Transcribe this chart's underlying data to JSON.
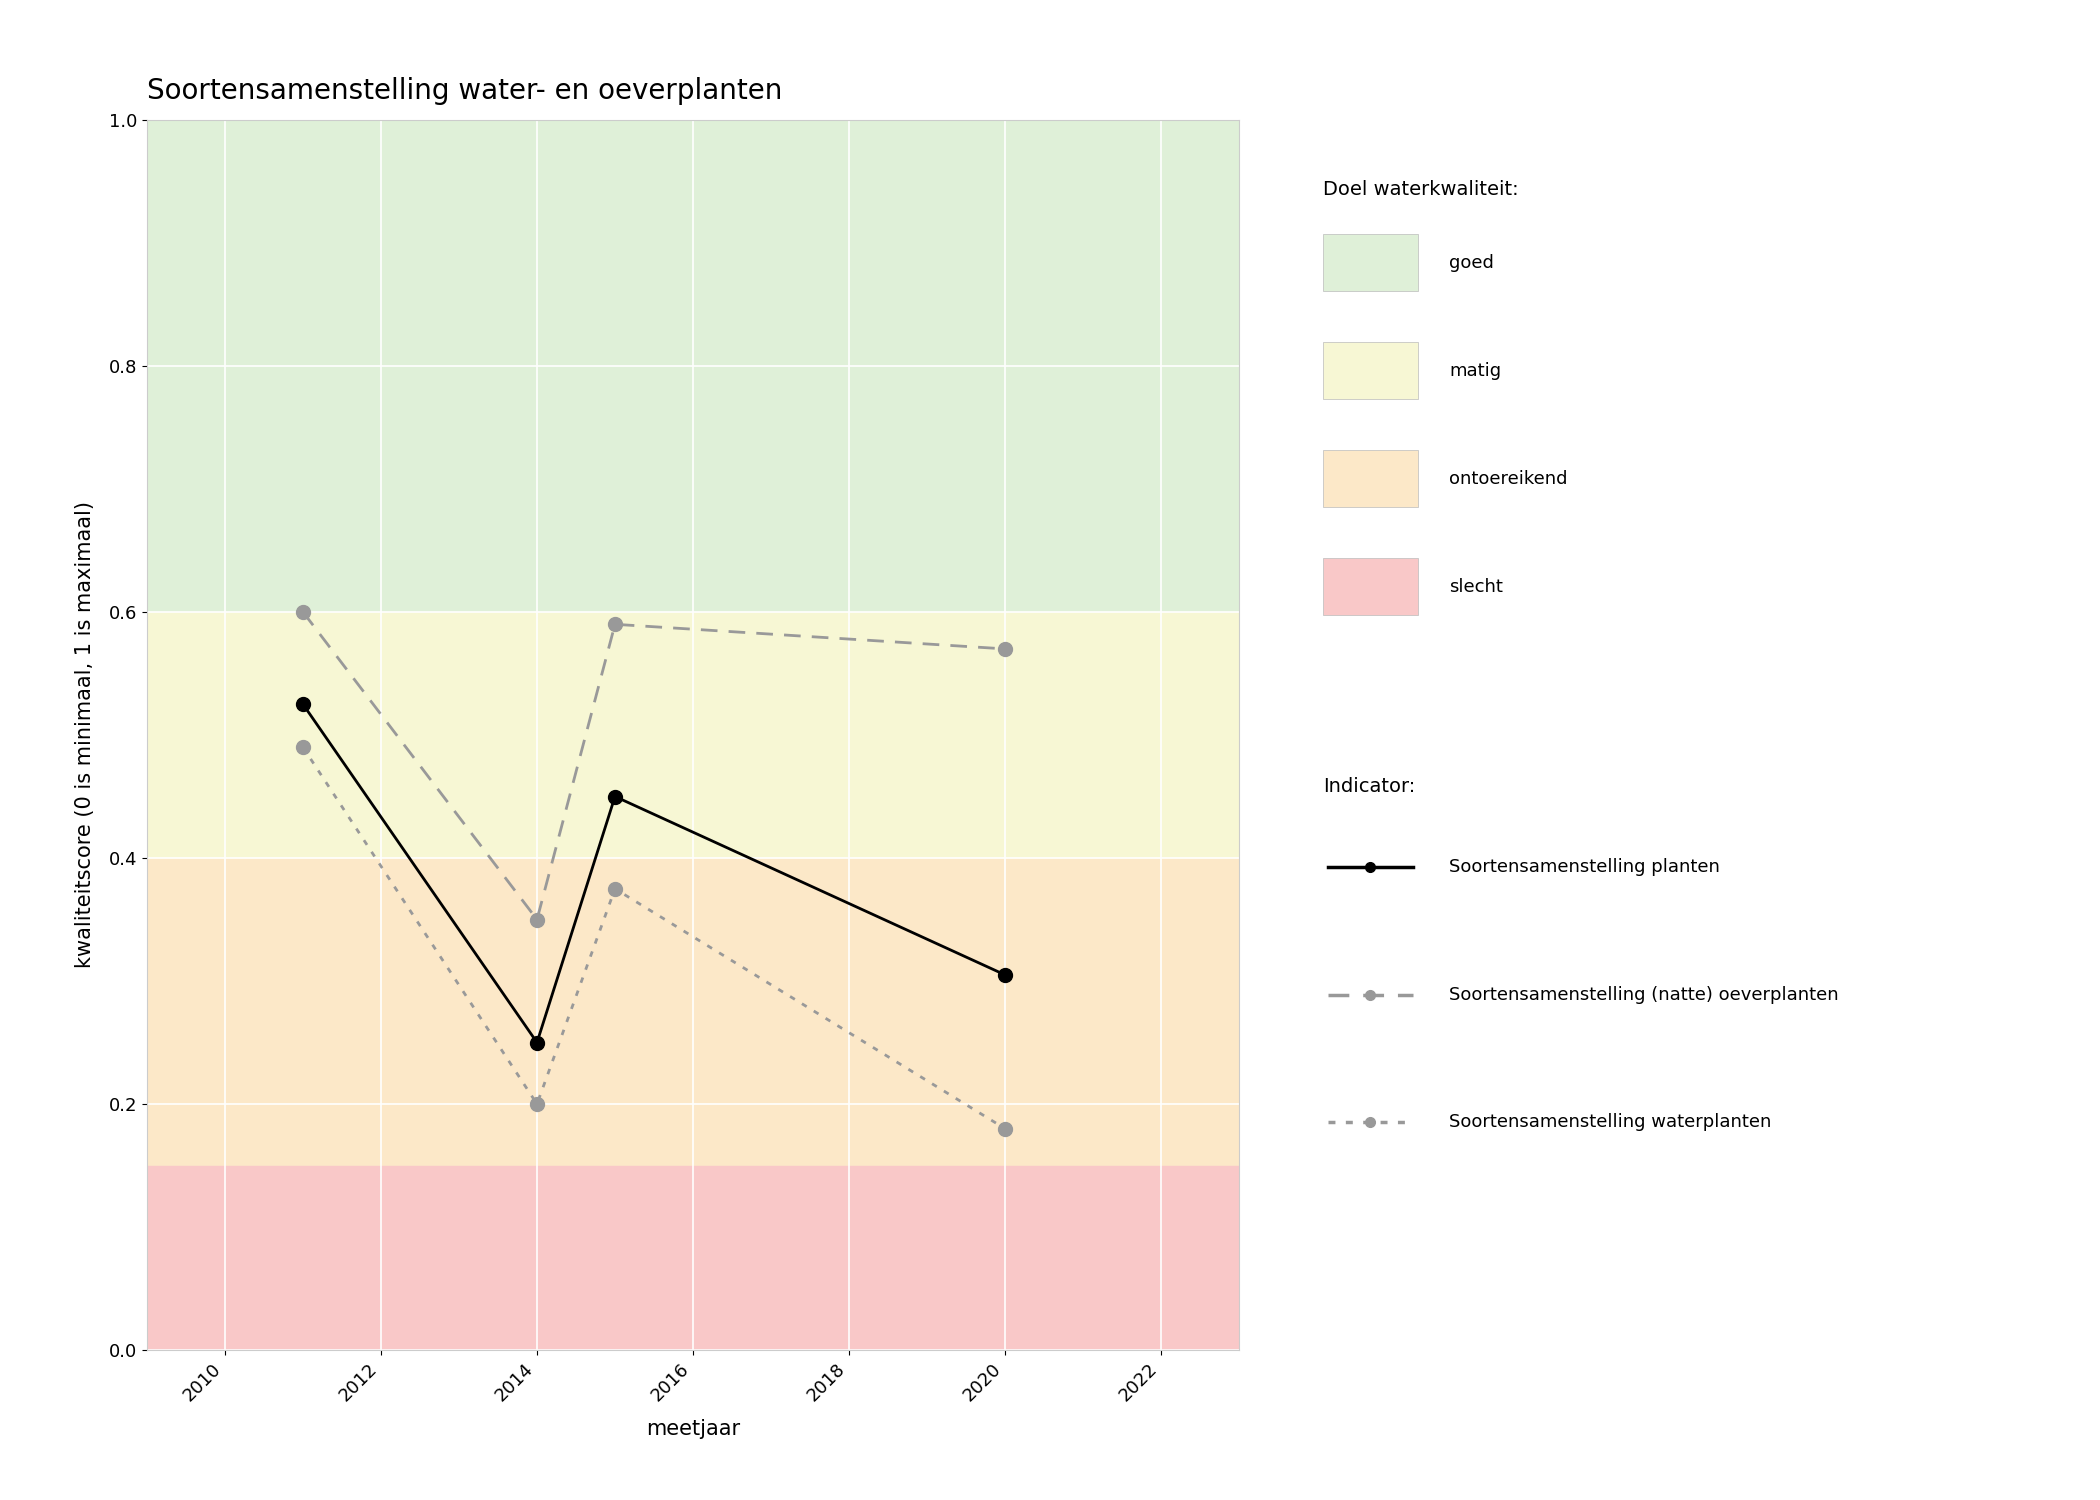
{
  "title": "Soortensamenstelling water- en oeverplanten",
  "xlabel": "meetjaar",
  "ylabel": "kwaliteitscore (0 is minimaal, 1 is maximaal)",
  "xlim": [
    2009.0,
    2023.0
  ],
  "ylim": [
    0.0,
    1.0
  ],
  "xticks": [
    2010,
    2012,
    2014,
    2016,
    2018,
    2020,
    2022
  ],
  "yticks": [
    0.0,
    0.2,
    0.4,
    0.6,
    0.8,
    1.0
  ],
  "bg_good_min": 0.6,
  "bg_good_max": 1.0,
  "bg_good_color": "#dff0d8",
  "bg_moderate_min": 0.4,
  "bg_moderate_max": 0.6,
  "bg_moderate_color": "#f7f7d4",
  "bg_poor_min": 0.15,
  "bg_poor_max": 0.4,
  "bg_poor_color": "#fce8c8",
  "bg_bad_min": 0.0,
  "bg_bad_max": 0.15,
  "bg_bad_color": "#f9c8c8",
  "line1_x": [
    2011,
    2014,
    2015,
    2020
  ],
  "line1_y": [
    0.525,
    0.25,
    0.45,
    0.305
  ],
  "line1_color": "#000000",
  "line1_style": "solid",
  "line1_label": "Soortensamenstelling planten",
  "line2_x": [
    2011,
    2014,
    2015,
    2020
  ],
  "line2_y": [
    0.6,
    0.35,
    0.59,
    0.57
  ],
  "line2_color": "#999999",
  "line2_style": "dashed",
  "line2_label": "Soortensamenstelling (natte) oeverplanten",
  "line3_x": [
    2011,
    2014,
    2015,
    2020
  ],
  "line3_y": [
    0.49,
    0.2,
    0.375,
    0.18
  ],
  "line3_color": "#999999",
  "line3_style": "dotted",
  "line3_label": "Soortensamenstelling waterplanten",
  "legend_quality_title": "Doel waterkwaliteit:",
  "legend_indicator_title": "Indicator:",
  "legend_quality_labels": [
    "goed",
    "matig",
    "ontoereikend",
    "slecht"
  ],
  "legend_quality_colors": [
    "#dff0d8",
    "#f7f7d4",
    "#fce8c8",
    "#f9c8c8"
  ],
  "marker_size": 10,
  "linewidth": 2.0,
  "title_fontsize": 20,
  "axis_label_fontsize": 15,
  "tick_fontsize": 13,
  "legend_fontsize": 13,
  "bg_color": "#ffffff"
}
